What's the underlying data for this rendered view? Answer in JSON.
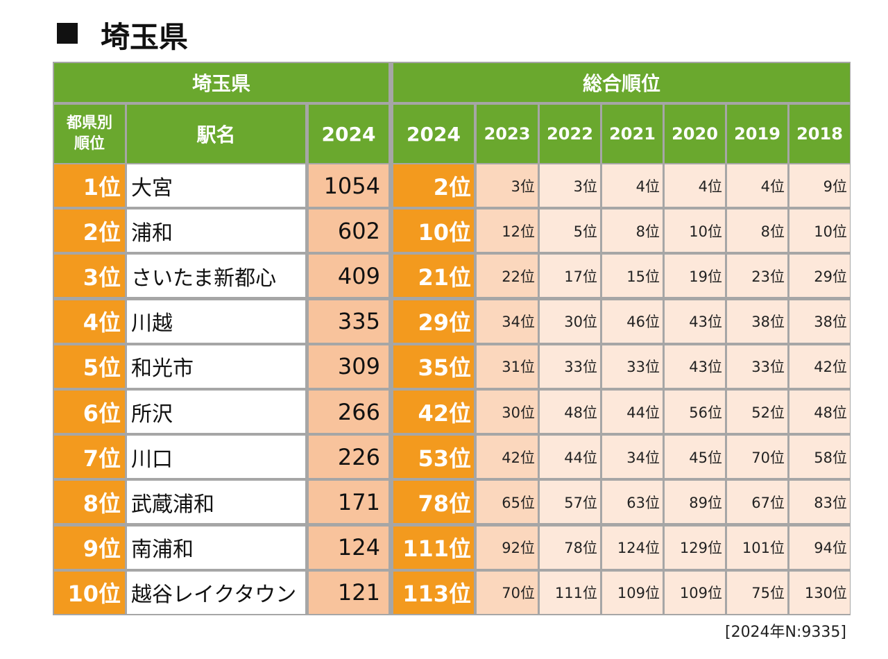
{
  "header": {
    "title": "埼玉県"
  },
  "table": {
    "group_headers": [
      "埼玉県",
      "総合順位"
    ],
    "columns": [
      [
        "都県別",
        "順位"
      ],
      "駅名",
      "2024",
      "2024",
      "2023",
      "2022",
      "2021",
      "2020",
      "2019",
      "2018"
    ],
    "rows": [
      [
        "1位",
        "大宮",
        "1054",
        "2位",
        "3位",
        "3位",
        "4位",
        "4位",
        "4位",
        "9位"
      ],
      [
        "2位",
        "浦和",
        "602",
        "10位",
        "12位",
        "5位",
        "8位",
        "10位",
        "8位",
        "10位"
      ],
      [
        "3位",
        "さいたま新都心",
        "409",
        "21位",
        "22位",
        "17位",
        "15位",
        "19位",
        "23位",
        "29位"
      ],
      [
        "4位",
        "川越",
        "335",
        "29位",
        "34位",
        "30位",
        "46位",
        "43位",
        "38位",
        "38位"
      ],
      [
        "5位",
        "和光市",
        "309",
        "35位",
        "31位",
        "33位",
        "33位",
        "43位",
        "33位",
        "42位"
      ],
      [
        "6位",
        "所沢",
        "266",
        "42位",
        "30位",
        "48位",
        "44位",
        "56位",
        "52位",
        "48位"
      ],
      [
        "7位",
        "川口",
        "226",
        "53位",
        "42位",
        "44位",
        "34位",
        "45位",
        "70位",
        "58位"
      ],
      [
        "8位",
        "武蔵浦和",
        "171",
        "78位",
        "65位",
        "57位",
        "63位",
        "89位",
        "67位",
        "83位"
      ],
      [
        "9位",
        "南浦和",
        "124",
        "111位",
        "92位",
        "78位",
        "124位",
        "129位",
        "101位",
        "94位"
      ],
      [
        "10位",
        "越谷レイクタウン",
        "121",
        "113位",
        "70位",
        "111位",
        "109位",
        "109位",
        "75位",
        "130位"
      ]
    ]
  },
  "footnote": "[2024年N:9335]"
}
